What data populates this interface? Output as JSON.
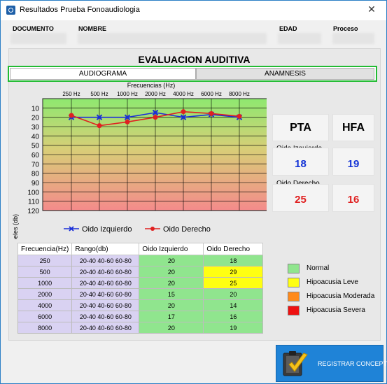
{
  "window": {
    "title": "Resultados Prueba Fonoaudiologia",
    "close_glyph": "✕"
  },
  "header": {
    "documento_label": "DOCUMENTO",
    "nombre_label": "NOMBRE",
    "edad_label": "EDAD",
    "proceso_label": "Proceso"
  },
  "section_title": "EVALUACION AUDITIVA",
  "tabs": [
    {
      "label": "AUDIOGRAMA",
      "active": true
    },
    {
      "label": "ANAMNESIS",
      "active": false
    }
  ],
  "chart_data": {
    "type": "line",
    "title": "Frecuencias (Hz)",
    "xlabel": "Frecuencias (Hz)",
    "ylabel": "Decibeles (db)",
    "categories": [
      "250 Hz",
      "500 Hz",
      "1000 Hz",
      "2000 Hz",
      "4000 Hz",
      "6000 Hz",
      "8000 Hz"
    ],
    "yticks": [
      10,
      20,
      30,
      40,
      50,
      60,
      70,
      80,
      90,
      100,
      110,
      120
    ],
    "ylim": [
      0,
      120
    ],
    "y_inverted": true,
    "background": "gradient green to red",
    "series": [
      {
        "name": "Oido Izquierdo",
        "values": [
          20,
          20,
          20,
          15,
          20,
          17,
          20
        ],
        "color": "#1a2fd8",
        "marker": "x"
      },
      {
        "name": "Oido Derecho",
        "values": [
          18,
          29,
          25,
          20,
          14,
          16,
          19
        ],
        "color": "#e02020",
        "marker": "circle"
      }
    ],
    "legend_position": "bottom"
  },
  "summary": {
    "pta_label": "PTA",
    "hfa_label": "HFA",
    "left_label": "Oido Izquierdo",
    "right_label": "Oido Derecho",
    "left_pta": "18",
    "left_hfa": "19",
    "right_pta": "25",
    "right_hfa": "16"
  },
  "table": {
    "headers": [
      "Frecuencia(Hz)",
      "Rango(db)",
      "Oido Izquierdo",
      "Oido Derecho"
    ],
    "rows": [
      {
        "freq": "250",
        "range": "20-40 40-60 60-80",
        "left": "20",
        "right": "18",
        "right_class": "normal"
      },
      {
        "freq": "500",
        "range": "20-40 40-60 60-80",
        "left": "20",
        "right": "29",
        "right_class": "leve"
      },
      {
        "freq": "1000",
        "range": "20-40 40-60 60-80",
        "left": "20",
        "right": "25",
        "right_class": "leve"
      },
      {
        "freq": "2000",
        "range": "20-40 40-60 60-80",
        "left": "15",
        "right": "20",
        "right_class": "normal"
      },
      {
        "freq": "4000",
        "range": "20-40 40-60 60-80",
        "left": "20",
        "right": "14",
        "right_class": "normal"
      },
      {
        "freq": "6000",
        "range": "20-40 40-60 60-80",
        "left": "17",
        "right": "16",
        "right_class": "normal"
      },
      {
        "freq": "8000",
        "range": "20-40 40-60 60-80",
        "left": "20",
        "right": "19",
        "right_class": "normal"
      }
    ]
  },
  "legend": [
    {
      "label": "Normal",
      "color": "#90e58e"
    },
    {
      "label": "Hipoacusia Leve",
      "color": "#ffff11"
    },
    {
      "label": "Hipoacusia Moderada",
      "color": "#ff8a1a"
    },
    {
      "label": "Hipoacusia Severa",
      "color": "#ee1111"
    }
  ],
  "register_button": {
    "label": "REGISTRAR CONCEPTO"
  }
}
